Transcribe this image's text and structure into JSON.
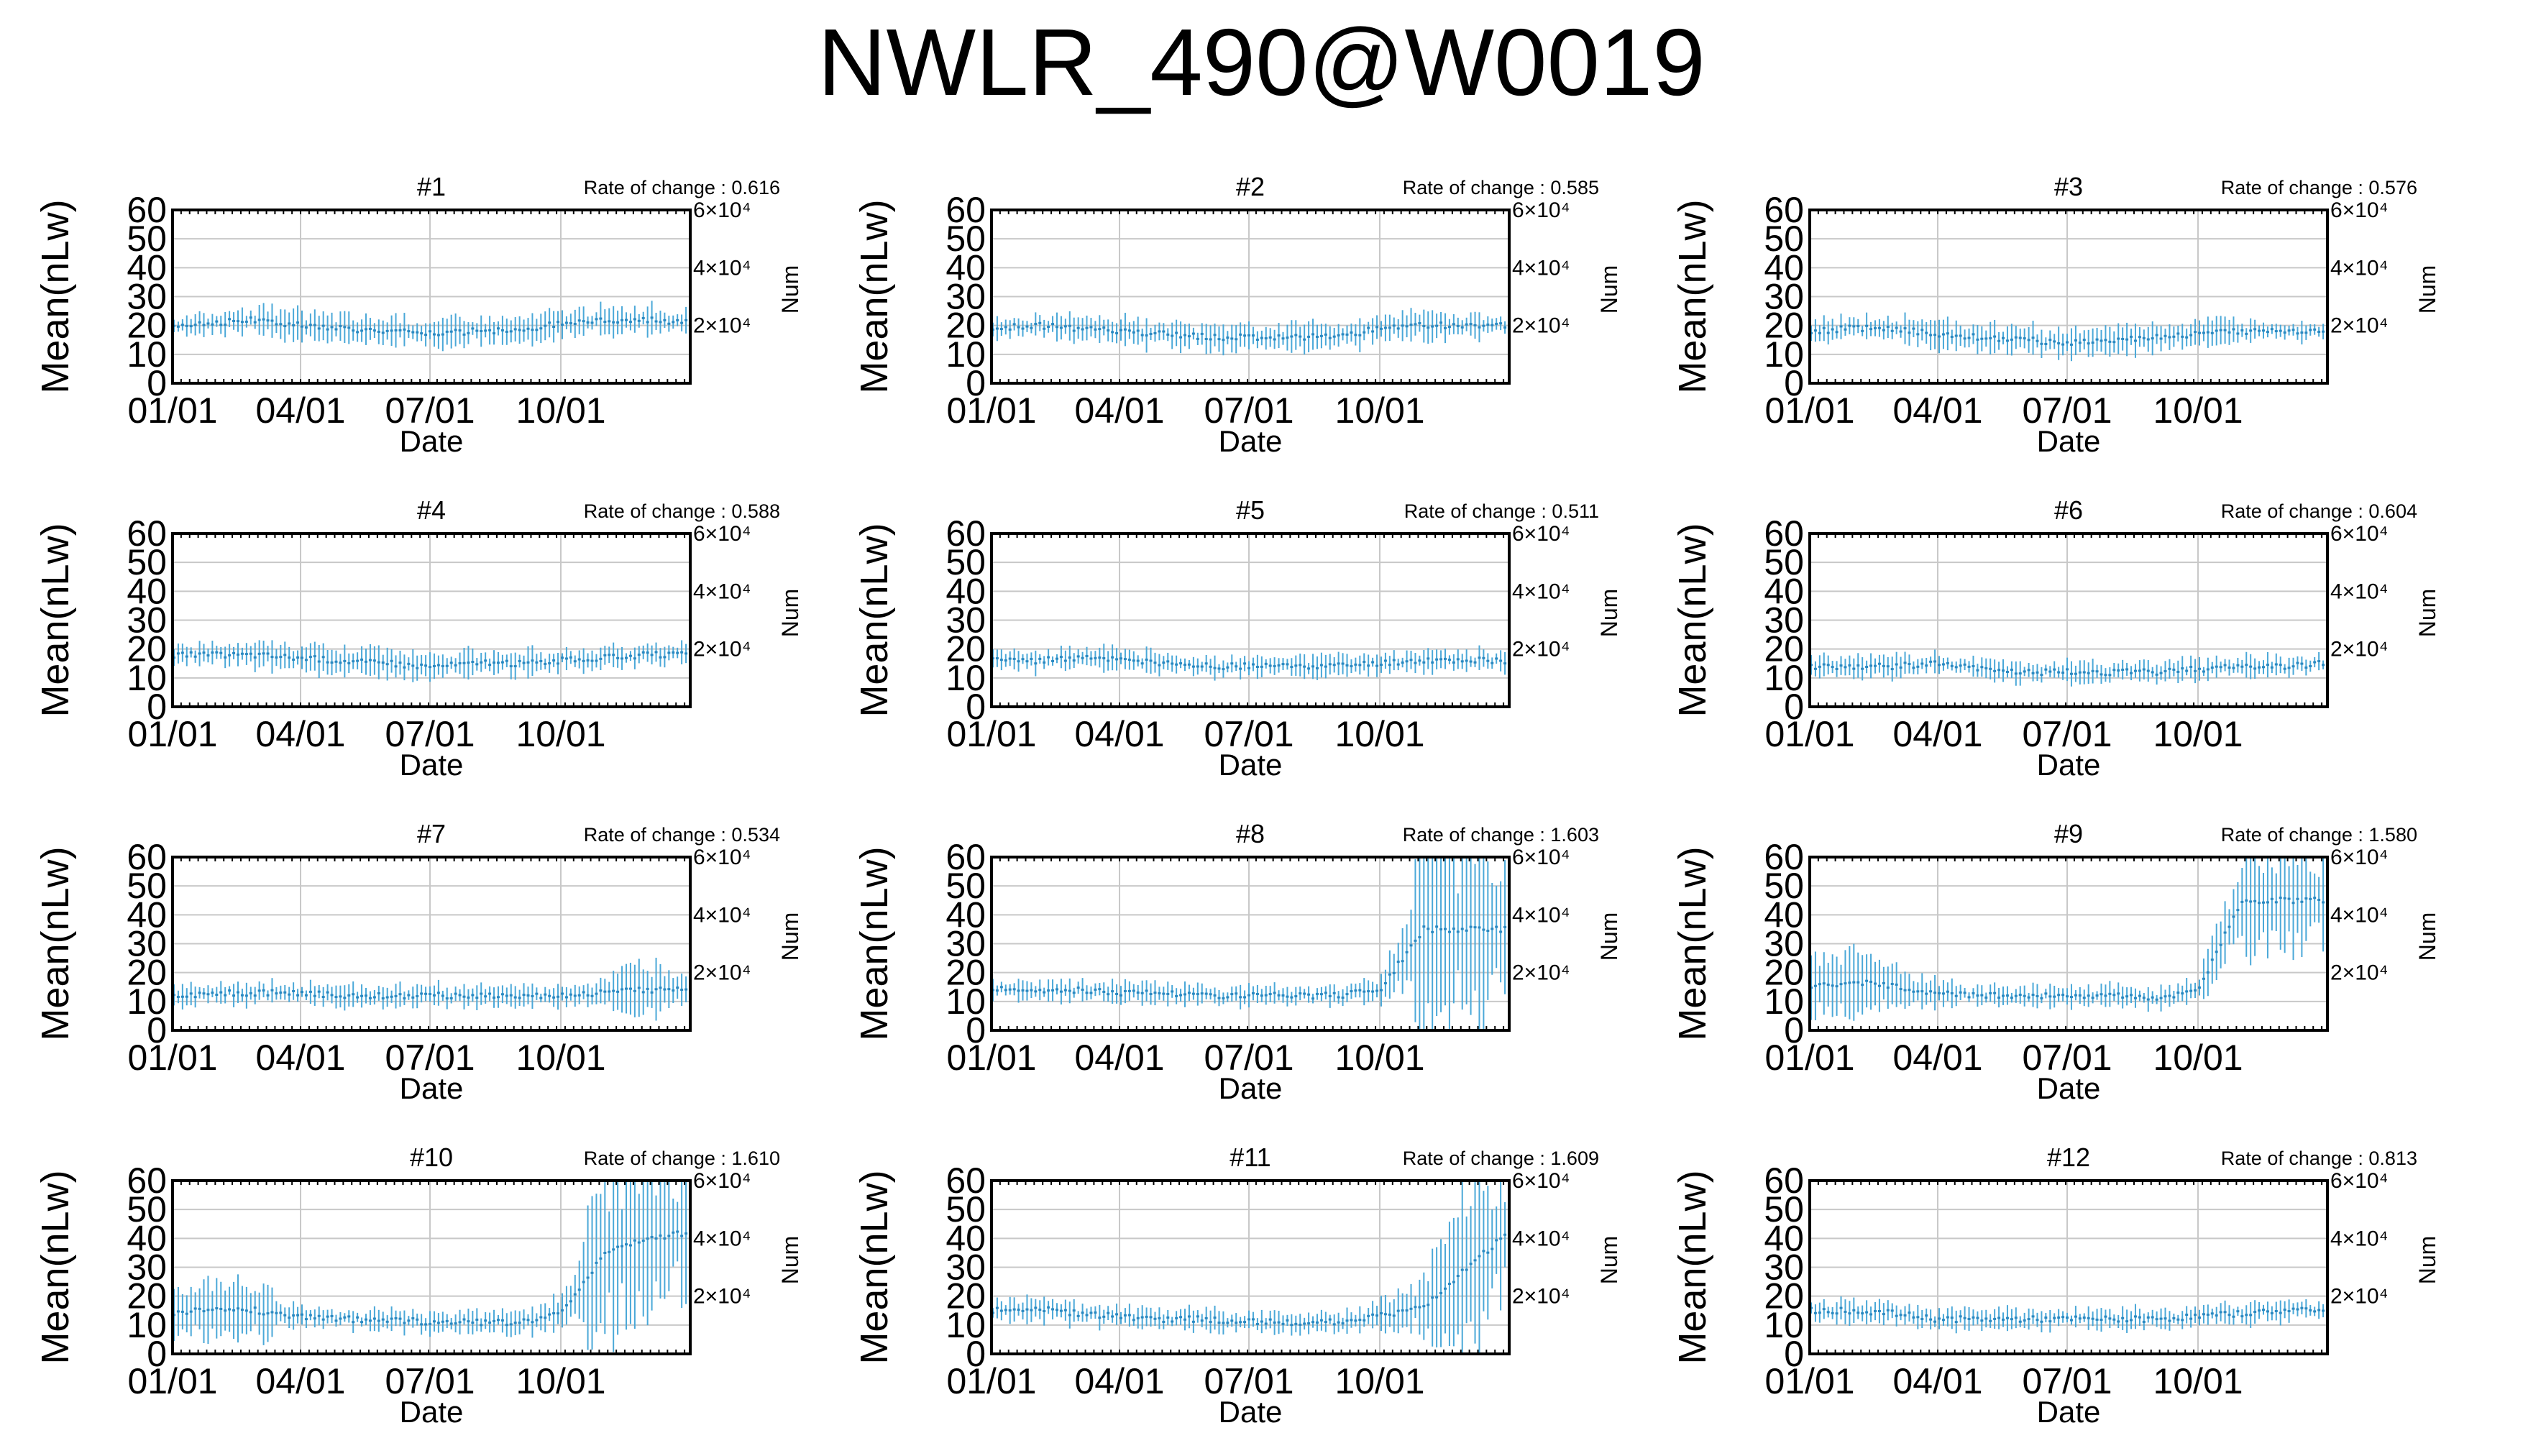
{
  "title": "NWLR_490@W0019",
  "colors": {
    "series": "#4aa8d8",
    "grid": "#c8c8c8",
    "frame": "#000000"
  },
  "chart_data": [
    {
      "type": "line",
      "title": "#1",
      "rate_label": "Rate of change : 0.616",
      "xlabel": "Date",
      "ylabel": "Mean(nLw)",
      "y2label": "Num",
      "xticks": [
        "01/01",
        "04/01",
        "07/01",
        "10/01"
      ],
      "yticks": [
        "0",
        "10",
        "20",
        "30",
        "40",
        "50",
        "60"
      ],
      "y2ticks": [
        "2×10⁴",
        "4×10⁴",
        "6×10⁴"
      ],
      "ylim": [
        0,
        60
      ],
      "grid": true,
      "series": [
        {
          "x": [
            "01/01",
            "02/01",
            "03/01",
            "04/01",
            "05/01",
            "06/01",
            "07/01",
            "08/01",
            "09/01",
            "10/01",
            "11/01",
            "12/01",
            "12/31"
          ],
          "mean": [
            20,
            21,
            22,
            20,
            19,
            18,
            17,
            18,
            18,
            21,
            22,
            22,
            21
          ],
          "err": [
            3,
            3,
            4,
            4,
            4,
            4,
            4,
            4,
            4,
            4,
            4,
            4,
            3
          ]
        }
      ]
    },
    {
      "type": "line",
      "title": "#2",
      "rate_label": "Rate of change : 0.585",
      "xlabel": "Date",
      "ylabel": "Mean(nLw)",
      "y2label": "Num",
      "xticks": [
        "01/01",
        "04/01",
        "07/01",
        "10/01"
      ],
      "yticks": [
        "0",
        "10",
        "20",
        "30",
        "40",
        "50",
        "60"
      ],
      "y2ticks": [
        "2×10⁴",
        "4×10⁴",
        "6×10⁴"
      ],
      "ylim": [
        0,
        60
      ],
      "grid": true,
      "series": [
        {
          "x": [
            "01/01",
            "02/01",
            "03/01",
            "04/01",
            "05/01",
            "06/01",
            "07/01",
            "08/01",
            "09/01",
            "10/01",
            "11/01",
            "12/01",
            "12/31"
          ],
          "mean": [
            19,
            20,
            19,
            18,
            17,
            16,
            16,
            16,
            16,
            19,
            20,
            20,
            20
          ],
          "err": [
            3,
            3,
            4,
            4,
            4,
            4,
            4,
            4,
            4,
            4,
            4,
            4,
            3
          ]
        }
      ]
    },
    {
      "type": "line",
      "title": "#3",
      "rate_label": "Rate of change : 0.576",
      "xlabel": "Date",
      "ylabel": "Mean(nLw)",
      "y2label": "Num",
      "xticks": [
        "01/01",
        "04/01",
        "07/01",
        "10/01"
      ],
      "yticks": [
        "0",
        "10",
        "20",
        "30",
        "40",
        "50",
        "60"
      ],
      "y2ticks": [
        "2×10⁴",
        "4×10⁴",
        "6×10⁴"
      ],
      "ylim": [
        0,
        60
      ],
      "grid": true,
      "series": [
        {
          "x": [
            "01/01",
            "02/01",
            "03/01",
            "04/01",
            "05/01",
            "06/01",
            "07/01",
            "08/01",
            "09/01",
            "10/01",
            "11/01",
            "12/01",
            "12/31"
          ],
          "mean": [
            18,
            19,
            19,
            17,
            16,
            15,
            14,
            15,
            16,
            17,
            18,
            18,
            18
          ],
          "err": [
            3,
            3,
            4,
            4,
            4,
            4,
            4,
            4,
            4,
            4,
            3,
            3,
            3
          ]
        }
      ]
    },
    {
      "type": "line",
      "title": "#4",
      "rate_label": "Rate of change : 0.588",
      "xlabel": "Date",
      "ylabel": "Mean(nLw)",
      "y2label": "Num",
      "xticks": [
        "01/01",
        "04/01",
        "07/01",
        "10/01"
      ],
      "yticks": [
        "0",
        "10",
        "20",
        "30",
        "40",
        "50",
        "60"
      ],
      "y2ticks": [
        "2×10⁴",
        "4×10⁴",
        "6×10⁴"
      ],
      "ylim": [
        0,
        60
      ],
      "grid": true,
      "series": [
        {
          "x": [
            "01/01",
            "02/01",
            "03/01",
            "04/01",
            "05/01",
            "06/01",
            "07/01",
            "08/01",
            "09/01",
            "10/01",
            "11/01",
            "12/01",
            "12/31"
          ],
          "mean": [
            18,
            18,
            18,
            17,
            16,
            15,
            14,
            15,
            15,
            16,
            17,
            18,
            18
          ],
          "err": [
            3,
            3,
            4,
            4,
            4,
            4,
            4,
            4,
            4,
            3,
            3,
            3,
            3
          ]
        }
      ]
    },
    {
      "type": "line",
      "title": "#5",
      "rate_label": "Rate of change : 0.511",
      "xlabel": "Date",
      "ylabel": "Mean(nLw)",
      "y2label": "Num",
      "xticks": [
        "01/01",
        "04/01",
        "07/01",
        "10/01"
      ],
      "yticks": [
        "0",
        "10",
        "20",
        "30",
        "40",
        "50",
        "60"
      ],
      "y2ticks": [
        "2×10⁴",
        "4×10⁴",
        "6×10⁴"
      ],
      "ylim": [
        0,
        60
      ],
      "grid": true,
      "series": [
        {
          "x": [
            "01/01",
            "02/01",
            "03/01",
            "04/01",
            "05/01",
            "06/01",
            "07/01",
            "08/01",
            "09/01",
            "10/01",
            "11/01",
            "12/01",
            "12/31"
          ],
          "mean": [
            16,
            16,
            17,
            16,
            15,
            14,
            14,
            14,
            14,
            15,
            16,
            16,
            16
          ],
          "err": [
            3,
            3,
            3,
            4,
            3,
            3,
            3,
            3,
            3,
            3,
            3,
            3,
            3
          ]
        }
      ]
    },
    {
      "type": "line",
      "title": "#6",
      "rate_label": "Rate of change : 0.604",
      "xlabel": "Date",
      "ylabel": "Mean(nLw)",
      "y2label": "Num",
      "xticks": [
        "01/01",
        "04/01",
        "07/01",
        "10/01"
      ],
      "yticks": [
        "0",
        "10",
        "20",
        "30",
        "40",
        "50",
        "60"
      ],
      "y2ticks": [
        "2×10⁴",
        "4×10⁴",
        "6×10⁴"
      ],
      "ylim": [
        0,
        60
      ],
      "grid": true,
      "series": [
        {
          "x": [
            "01/01",
            "02/01",
            "03/01",
            "04/01",
            "05/01",
            "06/01",
            "07/01",
            "08/01",
            "09/01",
            "10/01",
            "11/01",
            "12/01",
            "12/31"
          ],
          "mean": [
            14,
            14,
            14,
            15,
            13,
            12,
            12,
            12,
            12,
            13,
            14,
            14,
            15
          ],
          "err": [
            3,
            3,
            3,
            3,
            3,
            3,
            3,
            3,
            3,
            3,
            3,
            3,
            3
          ]
        }
      ]
    },
    {
      "type": "line",
      "title": "#7",
      "rate_label": "Rate of change : 0.534",
      "xlabel": "Date",
      "ylabel": "Mean(nLw)",
      "y2label": "Num",
      "xticks": [
        "01/01",
        "04/01",
        "07/01",
        "10/01"
      ],
      "yticks": [
        "0",
        "10",
        "20",
        "30",
        "40",
        "50",
        "60"
      ],
      "y2ticks": [
        "2×10⁴",
        "4×10⁴",
        "6×10⁴"
      ],
      "ylim": [
        0,
        60
      ],
      "grid": true,
      "series": [
        {
          "x": [
            "01/01",
            "02/01",
            "03/01",
            "04/01",
            "05/01",
            "06/01",
            "07/01",
            "08/01",
            "09/01",
            "10/01",
            "11/01",
            "12/01",
            "12/31"
          ],
          "mean": [
            12,
            13,
            13,
            13,
            12,
            12,
            12,
            12,
            12,
            12,
            13,
            14,
            14
          ],
          "err": [
            3,
            3,
            3,
            3,
            3,
            3,
            3,
            3,
            3,
            3,
            4,
            8,
            6
          ]
        }
      ]
    },
    {
      "type": "line",
      "title": "#8",
      "rate_label": "Rate of change : 1.603",
      "xlabel": "Date",
      "ylabel": "Mean(nLw)",
      "y2label": "Num",
      "xticks": [
        "01/01",
        "04/01",
        "07/01",
        "10/01"
      ],
      "yticks": [
        "0",
        "10",
        "20",
        "30",
        "40",
        "50",
        "60"
      ],
      "y2ticks": [
        "2×10⁴",
        "4×10⁴",
        "6×10⁴"
      ],
      "ylim": [
        0,
        60
      ],
      "grid": true,
      "series": [
        {
          "x": [
            "01/01",
            "02/01",
            "03/01",
            "04/01",
            "05/01",
            "06/01",
            "07/01",
            "08/01",
            "09/01",
            "10/01",
            "11/01",
            "12/01",
            "12/31"
          ],
          "mean": [
            14,
            14,
            14,
            13,
            13,
            12,
            12,
            12,
            12,
            14,
            35,
            35,
            35
          ],
          "err": [
            3,
            3,
            3,
            3,
            3,
            3,
            3,
            3,
            3,
            4,
            25,
            25,
            25
          ]
        }
      ]
    },
    {
      "type": "line",
      "title": "#9",
      "rate_label": "Rate of change : 1.580",
      "xlabel": "Date",
      "ylabel": "Mean(nLw)",
      "y2label": "Num",
      "xticks": [
        "01/01",
        "04/01",
        "07/01",
        "10/01"
      ],
      "yticks": [
        "0",
        "10",
        "20",
        "30",
        "40",
        "50",
        "60"
      ],
      "y2ticks": [
        "2×10⁴",
        "4×10⁴",
        "6×10⁴"
      ],
      "ylim": [
        0,
        60
      ],
      "grid": true,
      "series": [
        {
          "x": [
            "01/01",
            "02/01",
            "03/01",
            "04/01",
            "05/01",
            "06/01",
            "07/01",
            "08/01",
            "09/01",
            "10/01",
            "11/01",
            "12/01",
            "12/31"
          ],
          "mean": [
            15,
            17,
            15,
            13,
            12,
            12,
            12,
            12,
            11,
            14,
            45,
            45,
            45
          ],
          "err": [
            8,
            10,
            6,
            4,
            3,
            3,
            3,
            3,
            3,
            4,
            15,
            15,
            15
          ]
        }
      ]
    },
    {
      "type": "line",
      "title": "#10",
      "rate_label": "Rate of change : 1.610",
      "xlabel": "Date",
      "ylabel": "Mean(nLw)",
      "y2label": "Num",
      "xticks": [
        "01/01",
        "04/01",
        "07/01",
        "10/01"
      ],
      "yticks": [
        "0",
        "10",
        "20",
        "30",
        "40",
        "50",
        "60"
      ],
      "y2ticks": [
        "2×10⁴",
        "4×10⁴",
        "6×10⁴"
      ],
      "ylim": [
        0,
        60
      ],
      "grid": true,
      "series": [
        {
          "x": [
            "01/01",
            "02/01",
            "03/01",
            "04/01",
            "05/01",
            "06/01",
            "07/01",
            "08/01",
            "09/01",
            "10/01",
            "11/01",
            "12/01",
            "12/31"
          ],
          "mean": [
            14,
            16,
            15,
            13,
            12,
            12,
            11,
            11,
            11,
            14,
            35,
            40,
            42
          ],
          "err": [
            6,
            10,
            8,
            3,
            3,
            3,
            3,
            3,
            3,
            5,
            25,
            20,
            18
          ]
        }
      ]
    },
    {
      "type": "line",
      "title": "#11",
      "rate_label": "Rate of change : 1.609",
      "xlabel": "Date",
      "ylabel": "Mean(nLw)",
      "y2label": "Num",
      "xticks": [
        "01/01",
        "04/01",
        "07/01",
        "10/01"
      ],
      "yticks": [
        "0",
        "10",
        "20",
        "30",
        "40",
        "50",
        "60"
      ],
      "y2ticks": [
        "2×10⁴",
        "4×10⁴",
        "6×10⁴"
      ],
      "ylim": [
        0,
        60
      ],
      "grid": true,
      "series": [
        {
          "x": [
            "01/01",
            "02/01",
            "03/01",
            "04/01",
            "05/01",
            "06/01",
            "07/01",
            "08/01",
            "09/01",
            "10/01",
            "11/01",
            "12/01",
            "12/31"
          ],
          "mean": [
            15,
            16,
            14,
            13,
            12,
            12,
            11,
            11,
            11,
            13,
            16,
            30,
            42
          ],
          "err": [
            3,
            4,
            3,
            3,
            3,
            3,
            3,
            3,
            3,
            4,
            8,
            25,
            20
          ]
        }
      ]
    },
    {
      "type": "line",
      "title": "#12",
      "rate_label": "Rate of change : 0.813",
      "xlabel": "Date",
      "ylabel": "Mean(nLw)",
      "y2label": "Num",
      "xticks": [
        "01/01",
        "04/01",
        "07/01",
        "10/01"
      ],
      "yticks": [
        "0",
        "10",
        "20",
        "30",
        "40",
        "50",
        "60"
      ],
      "y2ticks": [
        "2×10⁴",
        "4×10⁴",
        "6×10⁴"
      ],
      "ylim": [
        0,
        60
      ],
      "grid": true,
      "series": [
        {
          "x": [
            "01/01",
            "02/01",
            "03/01",
            "04/01",
            "05/01",
            "06/01",
            "07/01",
            "08/01",
            "09/01",
            "10/01",
            "11/01",
            "12/01",
            "12/31"
          ],
          "mean": [
            15,
            15,
            14,
            12,
            12,
            12,
            12,
            12,
            12,
            13,
            14,
            15,
            16
          ],
          "err": [
            3,
            3,
            3,
            3,
            3,
            3,
            3,
            3,
            3,
            3,
            3,
            3,
            3
          ]
        }
      ]
    }
  ]
}
